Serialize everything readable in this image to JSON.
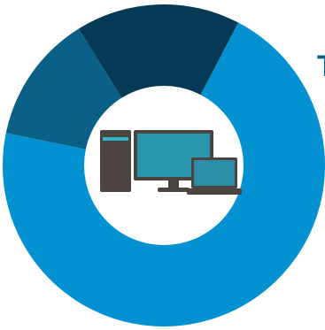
{
  "chart_data": {
    "type": "pie",
    "title": "",
    "slices": [
      {
        "value": 0.706,
        "color": "#0491D1"
      },
      {
        "value": 0.129,
        "color": "#0B6088"
      },
      {
        "value": 0.165,
        "color": "#043A56"
      }
    ]
  },
  "center_graphic": {
    "icon": "computer-devices-icon",
    "items": [
      "desktop-tower-icon",
      "monitor-icon",
      "laptop-icon"
    ],
    "background": "#FFFFFF"
  },
  "colors": {
    "tower": "#4B4440",
    "screen": "#2B97AD",
    "screen_dark": "#1E6E80",
    "laptop_screen": "#2B8FA8",
    "accent": "#2FB5C9",
    "edge_text": "#0B6088"
  },
  "edge_text": "T"
}
